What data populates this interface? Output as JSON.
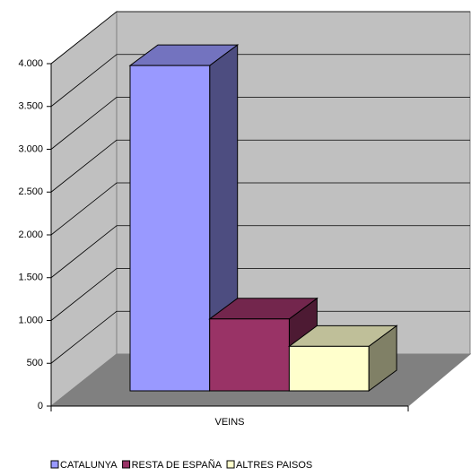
{
  "chart_data": {
    "type": "bar3d",
    "categories": [
      "VEINS"
    ],
    "series": [
      {
        "name": "CATALUNYA",
        "color": "#9999ff",
        "values": [
          3800
        ]
      },
      {
        "name": "RESTA DE ESPAÑA",
        "color": "#993366",
        "values": [
          840
        ]
      },
      {
        "name": "ALTRES PAISOS",
        "color": "#ffffcc",
        "values": [
          520
        ]
      }
    ],
    "ylim": [
      0,
      4000
    ],
    "yticks": [
      0,
      500,
      {
        "value": 1000,
        "label": "1.000"
      },
      {
        "value": 1500,
        "label": "1.500"
      },
      {
        "value": 2000,
        "label": "2.000"
      },
      {
        "value": 2500,
        "label": "2.500"
      },
      {
        "value": 3000,
        "label": "3.000"
      },
      {
        "value": 3500,
        "label": "3.500"
      },
      {
        "value": 4000,
        "label": "4.000"
      }
    ],
    "grid": true,
    "legend": "bottom"
  }
}
